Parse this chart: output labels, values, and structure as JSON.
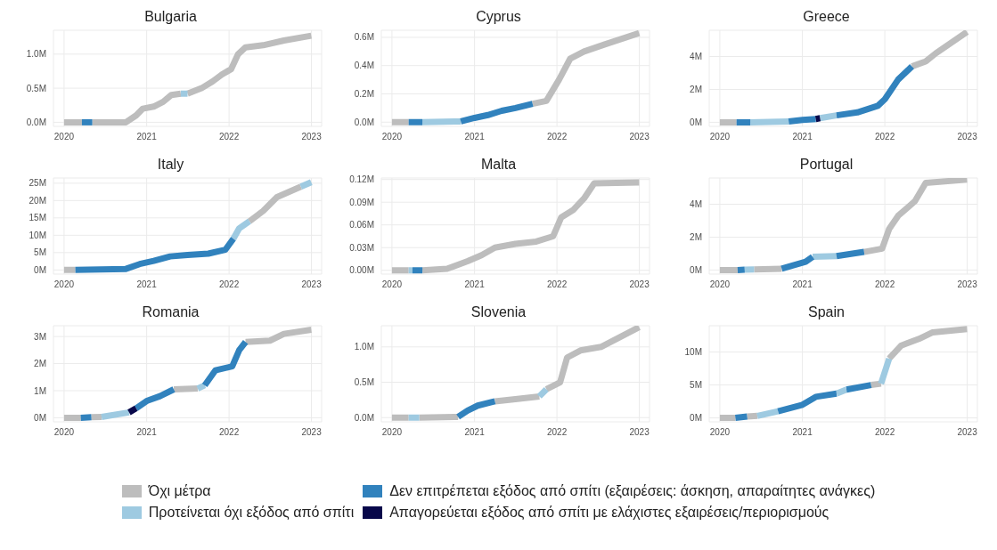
{
  "chart_data": [
    {
      "type": "line",
      "title": "Bulgaria",
      "grid": true,
      "xlim": [
        "2019-11-15",
        "2023-02-15"
      ],
      "xticks": [
        "2020",
        "2021",
        "2022",
        "2023"
      ],
      "ylim": [
        -60000,
        1350000
      ],
      "yticks": [
        {
          "value": 0,
          "label": "0.0M"
        },
        {
          "value": 500000,
          "label": "0.5M"
        },
        {
          "value": 1000000,
          "label": "1.0M"
        }
      ],
      "series": [
        {
          "color": "#bdbdbd",
          "x": [
            "2020-01-01",
            "2020-03-20",
            "2020-04-20",
            "2020-05-05",
            "2020-10-01",
            "2020-11-15",
            "2020-12-15",
            "2021-02-01",
            "2021-03-15",
            "2021-04-20",
            "2021-06-01",
            "2021-06-15",
            "2021-07-01",
            "2021-09-01",
            "2021-10-20",
            "2021-11-30",
            "2022-01-10",
            "2022-02-10",
            "2022-03-15",
            "2022-06-01",
            "2022-09-01",
            "2022-12-31"
          ],
          "values": [
            0,
            0,
            null,
            0,
            0,
            100000,
            200000,
            230000,
            300000,
            400000,
            420000,
            null,
            420000,
            500000,
            600000,
            700000,
            780000,
            1000000,
            1100000,
            1130000,
            1200000,
            1270000
          ]
        },
        {
          "color": "#9ecae1",
          "x": [
            "2021-06-01",
            "2021-07-01"
          ],
          "values": [
            420000,
            420000
          ]
        },
        {
          "color": "#3182bd",
          "x": [
            "2020-03-20",
            "2020-05-05"
          ],
          "values": [
            0,
            0
          ]
        }
      ]
    },
    {
      "type": "line",
      "title": "Cyprus",
      "grid": true,
      "xlim": [
        "2019-11-15",
        "2023-02-15"
      ],
      "xticks": [
        "2020",
        "2021",
        "2022",
        "2023"
      ],
      "ylim": [
        -30000,
        650000
      ],
      "yticks": [
        {
          "value": 0,
          "label": "0.0M"
        },
        {
          "value": 200000,
          "label": "0.2M"
        },
        {
          "value": 400000,
          "label": "0.4M"
        },
        {
          "value": 600000,
          "label": "0.6M"
        }
      ],
      "series": [
        {
          "color": "#bdbdbd",
          "x": [
            "2020-01-01",
            "2020-03-15",
            "2020-06-01",
            "2021-09-15",
            "2021-11-15",
            "2022-01-10",
            "2022-03-01",
            "2022-05-01",
            "2022-08-01",
            "2022-12-31"
          ],
          "values": [
            0,
            0,
            null,
            130000,
            150000,
            300000,
            450000,
            500000,
            550000,
            630000
          ]
        },
        {
          "color": "#9ecae1",
          "x": [
            "2020-05-15",
            "2020-11-01"
          ],
          "values": [
            0,
            5000
          ]
        },
        {
          "color": "#3182bd",
          "x": [
            "2020-03-15",
            "2020-05-15",
            "2020-08-01",
            "2020-11-01",
            "2021-01-01",
            "2021-03-01",
            "2021-05-01",
            "2021-07-01",
            "2021-09-15"
          ],
          "values": [
            0,
            0,
            null,
            5000,
            30000,
            50000,
            80000,
            100000,
            130000
          ]
        }
      ]
    },
    {
      "type": "line",
      "title": "Greece",
      "grid": true,
      "xlim": [
        "2019-11-15",
        "2023-02-15"
      ],
      "xticks": [
        "2020",
        "2021",
        "2022",
        "2023"
      ],
      "ylim": [
        -250000,
        5600000
      ],
      "yticks": [
        {
          "value": 0,
          "label": "0M"
        },
        {
          "value": 2000000,
          "label": "2M"
        },
        {
          "value": 4000000,
          "label": "4M"
        }
      ],
      "series": [
        {
          "color": "#bdbdbd",
          "x": [
            "2020-01-01",
            "2020-03-15",
            "2021-06-01",
            "2022-05-01",
            "2022-07-01",
            "2022-08-15",
            "2022-12-31"
          ],
          "values": [
            0,
            0,
            null,
            3400000,
            3700000,
            4200000,
            5500000
          ]
        },
        {
          "color": "#9ecae1",
          "x": [
            "2020-05-15",
            "2020-11-01",
            "2021-01-01",
            "2021-03-20",
            "2021-06-01"
          ],
          "values": [
            0,
            50000,
            null,
            250000,
            420000
          ]
        },
        {
          "color": "#3182bd",
          "x": [
            "2020-03-15",
            "2020-05-15",
            "2020-08-01",
            "2020-11-01",
            "2021-01-01",
            "2021-03-01",
            "2021-04-15",
            "2021-06-01",
            "2021-09-01",
            "2021-12-01",
            "2022-01-01",
            "2022-03-01",
            "2022-05-01"
          ],
          "values": [
            0,
            0,
            null,
            50000,
            140000,
            200000,
            null,
            420000,
            600000,
            1000000,
            1400000,
            2600000,
            3400000
          ]
        },
        {
          "color": "#08084a",
          "x": [
            "2021-03-01",
            "2021-03-20"
          ],
          "values": [
            200000,
            250000
          ]
        }
      ]
    },
    {
      "type": "line",
      "title": "Italy",
      "grid": true,
      "xlim": [
        "2019-11-15",
        "2023-02-15"
      ],
      "xticks": [
        "2020",
        "2021",
        "2022",
        "2023"
      ],
      "ylim": [
        -1200000,
        26500000
      ],
      "yticks": [
        {
          "value": 0,
          "label": "0M"
        },
        {
          "value": 5000000,
          "label": "5M"
        },
        {
          "value": 10000000,
          "label": "10M"
        },
        {
          "value": 15000000,
          "label": "15M"
        },
        {
          "value": 20000000,
          "label": "20M"
        },
        {
          "value": 25000000,
          "label": "25M"
        }
      ],
      "series": [
        {
          "color": "#bdbdbd",
          "x": [
            "2020-01-01",
            "2020-02-20",
            "2021-01-01",
            "2022-04-01",
            "2022-06-01",
            "2022-08-01",
            "2022-11-15"
          ],
          "values": [
            0,
            0,
            null,
            14000000,
            17000000,
            21000000,
            24000000
          ]
        },
        {
          "color": "#9ecae1",
          "x": [
            "2022-01-20",
            "2022-02-15",
            "2022-04-01",
            "2022-07-01",
            "2022-11-15",
            "2022-12-31"
          ],
          "values": [
            9000000,
            12000000,
            14000000,
            null,
            24000000,
            25300000
          ]
        },
        {
          "color": "#3182bd",
          "x": [
            "2020-02-20",
            "2020-10-01",
            "2020-12-01",
            "2021-02-01",
            "2021-04-15",
            "2021-07-01",
            "2021-10-01",
            "2021-12-15",
            "2022-01-20"
          ],
          "values": [
            0,
            300000,
            1700000,
            2600000,
            3900000,
            4300000,
            4700000,
            5800000,
            9000000
          ]
        }
      ]
    },
    {
      "type": "line",
      "title": "Malta",
      "grid": true,
      "xlim": [
        "2019-11-15",
        "2023-02-15"
      ],
      "xticks": [
        "2020",
        "2021",
        "2022",
        "2023"
      ],
      "ylim": [
        -5000,
        122000
      ],
      "yticks": [
        {
          "value": 0,
          "label": "0.00M"
        },
        {
          "value": 30000,
          "label": "0.03M"
        },
        {
          "value": 60000,
          "label": "0.06M"
        },
        {
          "value": 90000,
          "label": "0.09M"
        },
        {
          "value": 120000,
          "label": "0.12M"
        }
      ],
      "series": [
        {
          "color": "#bdbdbd",
          "x": [
            "2020-01-01",
            "2020-03-15",
            "2020-04-15",
            "2020-05-15",
            "2020-09-01",
            "2020-12-01",
            "2021-02-01",
            "2021-04-01",
            "2021-07-01",
            "2021-10-01",
            "2021-12-15",
            "2022-01-20",
            "2022-03-15",
            "2022-05-01",
            "2022-06-15",
            "2022-12-31"
          ],
          "values": [
            0,
            0,
            null,
            0,
            2000,
            12000,
            20000,
            30000,
            35000,
            38000,
            45000,
            70000,
            80000,
            95000,
            115000,
            116000
          ]
        },
        {
          "color": "#9ecae1",
          "x": [
            "2020-03-15",
            "2020-04-01"
          ],
          "values": [
            0,
            0
          ]
        },
        {
          "color": "#3182bd",
          "x": [
            "2020-04-01",
            "2020-05-15"
          ],
          "values": [
            0,
            0
          ]
        }
      ]
    },
    {
      "type": "line",
      "title": "Portugal",
      "grid": true,
      "xlim": [
        "2019-11-15",
        "2023-02-15"
      ],
      "xticks": [
        "2020",
        "2021",
        "2022",
        "2023"
      ],
      "ylim": [
        -250000,
        5600000
      ],
      "yticks": [
        {
          "value": 0,
          "label": "0M"
        },
        {
          "value": 2000000,
          "label": "2M"
        },
        {
          "value": 4000000,
          "label": "4M"
        }
      ],
      "series": [
        {
          "color": "#bdbdbd",
          "x": [
            "2020-01-01",
            "2020-03-20",
            "2020-05-01",
            "2020-06-01",
            "2020-10-01",
            "2021-06-01",
            "2021-10-01",
            "2021-12-20",
            "2022-01-20",
            "2022-03-01",
            "2022-05-15",
            "2022-07-01",
            "2022-12-31"
          ],
          "values": [
            0,
            0,
            null,
            30000,
            80000,
            null,
            1100000,
            1300000,
            2500000,
            3300000,
            4200000,
            5300000,
            5500000
          ]
        },
        {
          "color": "#9ecae1",
          "x": [
            "2020-04-20",
            "2020-06-01",
            "2020-12-01",
            "2021-02-15",
            "2021-06-01"
          ],
          "values": [
            20000,
            30000,
            null,
            800000,
            850000
          ]
        },
        {
          "color": "#3182bd",
          "x": [
            "2020-03-20",
            "2020-04-20",
            "2020-06-01",
            "2020-10-01",
            "2021-01-15",
            "2021-02-15",
            "2021-04-01",
            "2021-06-01",
            "2021-10-01"
          ],
          "values": [
            0,
            20000,
            null,
            80000,
            500000,
            800000,
            null,
            850000,
            1100000
          ]
        }
      ]
    },
    {
      "type": "line",
      "title": "Romania",
      "grid": true,
      "legend": "bottom",
      "xlim": [
        "2019-11-15",
        "2023-02-15"
      ],
      "xticks": [
        "2020",
        "2021",
        "2022",
        "2023"
      ],
      "ylim": [
        -150000,
        3400000
      ],
      "yticks": [
        {
          "value": 0,
          "label": "0M"
        },
        {
          "value": 1000000,
          "label": "1M"
        },
        {
          "value": 2000000,
          "label": "2M"
        },
        {
          "value": 3000000,
          "label": "3M"
        }
      ],
      "series": [
        {
          "name": "Όχι μέτρα",
          "color": "#bdbdbd",
          "x": [
            "2020-01-01",
            "2020-03-15",
            "2020-04-01",
            "2020-05-01",
            "2020-06-15",
            "2020-10-01",
            "2021-05-01",
            "2021-08-15",
            "2021-12-01",
            "2022-03-15",
            "2022-07-01",
            "2022-09-01",
            "2022-12-31"
          ],
          "values": [
            0,
            0,
            null,
            20000,
            30000,
            null,
            1050000,
            1080000,
            null,
            2800000,
            2850000,
            3100000,
            3250000
          ]
        },
        {
          "name": "Προτείνεται όχι εξόδος από σπίτι",
          "color": "#9ecae1",
          "x": [
            "2020-06-15",
            "2020-10-15",
            "2021-03-01",
            "2021-08-15",
            "2021-09-15"
          ],
          "values": [
            30000,
            200000,
            null,
            1080000,
            1200000
          ]
        },
        {
          "name": "Δεν επιτρέπεται εξόδος από σπίτι (εξαιρέσεις: άσκηση, απαραίτητες ανάγκες)",
          "color": "#3182bd",
          "x": [
            "2020-03-15",
            "2020-05-01",
            "2020-08-01",
            "2020-11-15",
            "2021-01-01",
            "2021-03-01",
            "2021-05-01",
            "2021-07-01",
            "2021-09-15",
            "2021-11-01",
            "2022-01-15",
            "2022-02-15",
            "2022-03-15"
          ],
          "values": [
            0,
            20000,
            null,
            350000,
            620000,
            800000,
            1050000,
            null,
            1200000,
            1750000,
            1900000,
            2500000,
            2800000
          ]
        },
        {
          "name": "Απαγορεύεται εξόδος από σπίτι με ελάχιστες εξαιρέσεις/περιορισμούς",
          "color": "#08084a",
          "x": [
            "2020-10-15",
            "2020-11-15"
          ],
          "values": [
            200000,
            350000
          ]
        }
      ]
    },
    {
      "type": "line",
      "title": "Slovenia",
      "grid": true,
      "xlim": [
        "2019-11-15",
        "2023-02-15"
      ],
      "xticks": [
        "2020",
        "2021",
        "2022",
        "2023"
      ],
      "ylim": [
        -60000,
        1300000
      ],
      "yticks": [
        {
          "value": 0,
          "label": "0.0M"
        },
        {
          "value": 500000,
          "label": "0.5M"
        },
        {
          "value": 1000000,
          "label": "1.0M"
        }
      ],
      "series": [
        {
          "color": "#bdbdbd",
          "x": [
            "2020-01-01",
            "2020-03-15",
            "2020-04-15",
            "2020-05-01",
            "2020-10-20",
            "2021-01-01",
            "2021-04-01",
            "2021-07-01",
            "2021-10-15",
            "2021-11-01",
            "2021-11-15",
            "2022-01-15",
            "2022-02-15",
            "2022-04-15",
            "2022-07-15",
            "2022-12-31"
          ],
          "values": [
            0,
            0,
            null,
            0,
            10000,
            null,
            230000,
            260000,
            300000,
            null,
            400000,
            500000,
            850000,
            950000,
            1000000,
            1280000
          ]
        },
        {
          "color": "#9ecae1",
          "x": [
            "2020-03-15",
            "2020-05-01",
            "2021-06-01",
            "2021-10-15",
            "2021-11-15"
          ],
          "values": [
            0,
            0,
            null,
            300000,
            400000
          ]
        },
        {
          "color": "#3182bd",
          "x": [
            "2020-10-20",
            "2020-12-01",
            "2021-01-15",
            "2021-04-01"
          ],
          "values": [
            10000,
            100000,
            170000,
            230000
          ]
        }
      ]
    },
    {
      "type": "line",
      "title": "Spain",
      "grid": true,
      "xlim": [
        "2019-11-15",
        "2023-02-15"
      ],
      "xticks": [
        "2020",
        "2021",
        "2022",
        "2023"
      ],
      "ylim": [
        -600000,
        14000000
      ],
      "yticks": [
        {
          "value": 0,
          "label": "0M"
        },
        {
          "value": 5000000,
          "label": "5M"
        },
        {
          "value": 10000000,
          "label": "10M"
        }
      ],
      "series": [
        {
          "color": "#bdbdbd",
          "x": [
            "2020-01-01",
            "2020-03-10",
            "2020-04-01",
            "2020-05-01",
            "2020-06-15",
            "2021-01-01",
            "2021-11-01",
            "2021-12-15",
            "2022-01-01",
            "2022-01-20",
            "2022-03-15",
            "2022-06-01",
            "2022-08-01",
            "2022-12-31"
          ],
          "values": [
            0,
            0,
            null,
            200000,
            300000,
            null,
            5000000,
            5200000,
            null,
            9000000,
            11000000,
            12000000,
            13000000,
            13500000
          ]
        },
        {
          "color": "#9ecae1",
          "x": [
            "2020-06-15",
            "2020-09-15",
            "2021-01-01",
            "2021-06-01",
            "2021-07-15",
            "2021-09-01",
            "2021-12-15",
            "2022-01-20"
          ],
          "values": [
            300000,
            1000000,
            null,
            3700000,
            4300000,
            null,
            5200000,
            9000000
          ]
        },
        {
          "color": "#3182bd",
          "x": [
            "2020-03-10",
            "2020-05-01",
            "2020-07-01",
            "2020-09-15",
            "2021-01-01",
            "2021-03-01",
            "2021-06-01",
            "2021-07-01",
            "2021-07-15",
            "2021-11-01"
          ],
          "values": [
            0,
            200000,
            null,
            1000000,
            2000000,
            3200000,
            3700000,
            null,
            4300000,
            5000000
          ]
        }
      ]
    }
  ]
}
